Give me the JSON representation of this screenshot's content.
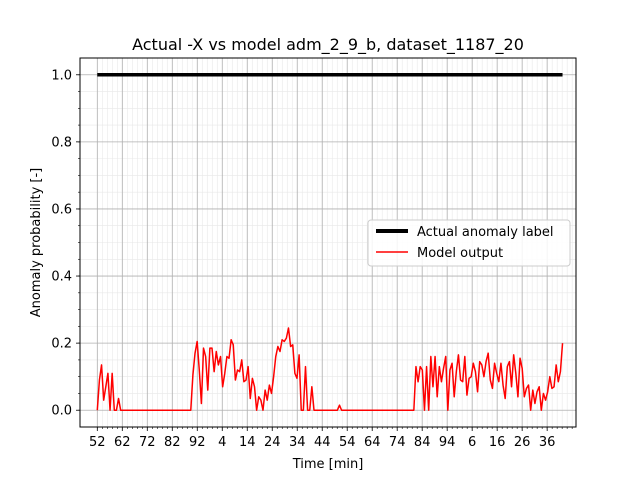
{
  "chart_data": {
    "type": "line",
    "title": "Actual -X vs model adm_2_9_b, dataset_1187_20",
    "xlabel": "Time [min]",
    "ylabel": "Anomaly probability [-]",
    "xlim": [
      -4.5,
      124.5
    ],
    "ylim": [
      -0.05,
      1.05
    ],
    "x_tick_labels": [
      "52",
      "62",
      "72",
      "82",
      "92",
      "4",
      "14",
      "24",
      "34",
      "44",
      "54",
      "64",
      "74",
      "84",
      "94",
      "6",
      "16",
      "26",
      "36"
    ],
    "y_tick_labels": [
      "0.0",
      "0.2",
      "0.4",
      "0.6",
      "0.8",
      "1.0"
    ],
    "grid": true,
    "legend_position": "center-right",
    "series": [
      {
        "name": "Actual anomaly label",
        "color": "#000000",
        "values": [
          1.0,
          1.0
        ]
      },
      {
        "name": "Model output",
        "color": "#ff0000",
        "values": [
          0.0,
          0.09,
          0.135,
          0.03,
          0.07,
          0.11,
          0.0,
          0.11,
          0.0,
          0.0,
          0.035,
          0.0,
          0.0,
          0.0,
          0.0,
          0.0,
          0.0,
          0.0,
          0.0,
          0.0,
          0.0,
          0.0,
          0.0,
          0.0,
          0.0,
          0.0,
          0.0,
          0.0,
          0.0,
          0.0,
          0.0,
          0.0,
          0.0,
          0.0,
          0.0,
          0.0,
          0.0,
          0.0,
          0.0,
          0.0,
          0.0,
          0.0,
          0.0,
          0.0,
          0.0,
          0.105,
          0.17,
          0.205,
          0.12,
          0.02,
          0.185,
          0.16,
          0.06,
          0.185,
          0.185,
          0.115,
          0.175,
          0.135,
          0.16,
          0.07,
          0.11,
          0.16,
          0.155,
          0.21,
          0.195,
          0.09,
          0.12,
          0.115,
          0.15,
          0.085,
          0.09,
          0.13,
          0.035,
          0.095,
          0.07,
          0.0,
          0.04,
          0.03,
          0.0,
          0.06,
          0.03,
          0.075,
          0.05,
          0.1,
          0.16,
          0.19,
          0.175,
          0.21,
          0.205,
          0.215,
          0.245,
          0.19,
          0.195,
          0.11,
          0.095,
          0.165,
          0.0,
          0.0,
          0.13,
          0.0,
          0.0,
          0.07,
          0.0,
          0.0,
          0.0,
          0.0,
          0.0,
          0.0,
          0.0,
          0.0,
          0.0,
          0.0,
          0.0,
          0.0,
          0.015,
          0.0,
          0.0,
          0.0,
          0.0,
          0.0,
          0.0,
          0.0,
          0.0,
          0.0,
          0.0,
          0.0,
          0.0,
          0.0,
          0.0,
          0.0,
          0.0,
          0.0,
          0.0,
          0.0,
          0.0,
          0.0,
          0.0,
          0.0,
          0.0,
          0.0,
          0.0,
          0.0,
          0.0,
          0.0,
          0.0,
          0.0,
          0.0,
          0.0,
          0.0,
          0.0,
          0.13,
          0.085,
          0.13,
          0.12,
          0.0,
          0.13,
          0.0,
          0.16,
          0.07,
          0.16,
          0.04,
          0.13,
          0.085,
          0.125,
          0.16,
          0.0,
          0.12,
          0.14,
          0.04,
          0.115,
          0.165,
          0.09,
          0.085,
          0.16,
          0.045,
          0.095,
          0.1,
          0.14,
          0.115,
          0.055,
          0.145,
          0.135,
          0.1,
          0.145,
          0.17,
          0.09,
          0.065,
          0.14,
          0.11,
          0.085,
          0.14,
          0.075,
          0.035,
          0.13,
          0.145,
          0.07,
          0.165,
          0.11,
          0.04,
          0.155,
          0.125,
          0.04,
          0.065,
          0.075,
          0.0,
          0.06,
          0.02,
          0.055,
          0.07,
          0.0,
          0.05,
          0.03,
          0.055,
          0.1,
          0.065,
          0.07,
          0.135,
          0.085,
          0.115,
          0.2
        ]
      }
    ]
  }
}
